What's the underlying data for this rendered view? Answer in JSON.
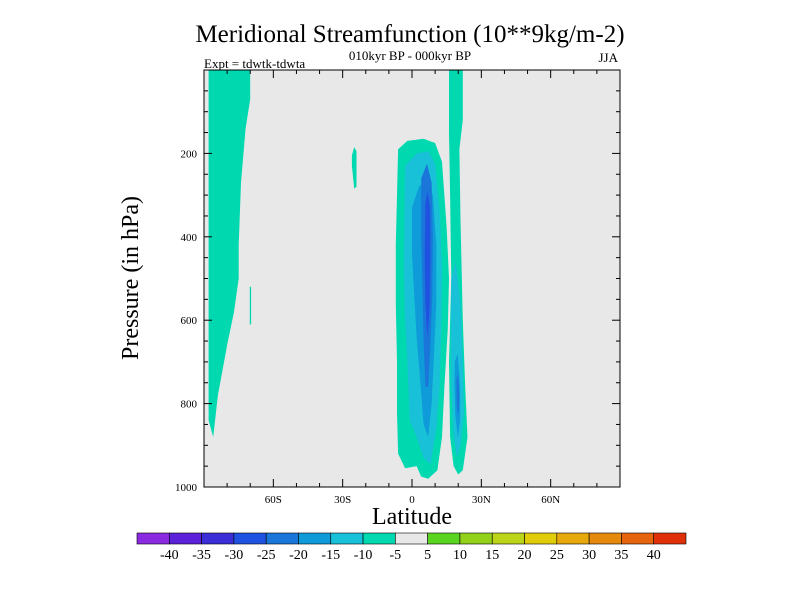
{
  "chart_data": {
    "type": "heatmap",
    "title": "Meridional Streamfunction (10**9kg/m-2)",
    "subtitle": "010kyr BP - 000kyr BP",
    "left_annotation": "Expt = tdwtk-tdwta",
    "right_annotation": "JJA",
    "xlabel": "Latitude",
    "ylabel": "Pressure (in hPa)",
    "xlim": [
      -90,
      90
    ],
    "ylim": [
      0,
      1000
    ],
    "y_inverted": true,
    "x_ticks": [
      {
        "value": -60,
        "label": "60S"
      },
      {
        "value": -30,
        "label": "30S"
      },
      {
        "value": 0,
        "label": "0"
      },
      {
        "value": 30,
        "label": "30N"
      },
      {
        "value": 60,
        "label": "60N"
      }
    ],
    "y_ticks": [
      {
        "value": 200,
        "label": "200"
      },
      {
        "value": 400,
        "label": "400"
      },
      {
        "value": 600,
        "label": "600"
      },
      {
        "value": 800,
        "label": "800"
      },
      {
        "value": 1000,
        "label": "1000"
      }
    ],
    "background_color": "#e8e8e8",
    "colorbar": {
      "labels": [
        "-40",
        "-35",
        "-30",
        "-25",
        "-20",
        "-15",
        "-10",
        "-5",
        "5",
        "10",
        "15",
        "20",
        "25",
        "30",
        "35",
        "40"
      ],
      "colors": [
        "#8a2be2",
        "#5b22d9",
        "#3b2ed6",
        "#1f52e0",
        "#1a76d9",
        "#0f9ad9",
        "#18c0d8",
        "#00d9b0",
        "#e8e8e8",
        "#5ad51f",
        "#92d01a",
        "#bcd41a",
        "#e0cc0a",
        "#e6a80d",
        "#e68a0d",
        "#e6640d",
        "#e0300a"
      ]
    },
    "contours": [
      {
        "name": "sh-polar-cell",
        "level": "-10 to -5",
        "color": "#00d9b0",
        "points": [
          [
            -88,
            0
          ],
          [
            -70,
            0
          ],
          [
            -70,
            70
          ],
          [
            -72,
            140
          ],
          [
            -74,
            270
          ],
          [
            -75,
            420
          ],
          [
            -75,
            500
          ],
          [
            -77,
            580
          ],
          [
            -80,
            660
          ],
          [
            -84,
            780
          ],
          [
            -86,
            880
          ],
          [
            -88,
            840
          ],
          [
            -88,
            0
          ]
        ]
      },
      {
        "name": "sh-thin-strip",
        "level": "-10 to -5",
        "color": "#00d9b0",
        "points": [
          [
            -70.2,
            520
          ],
          [
            -69.6,
            520
          ],
          [
            -69.6,
            610
          ],
          [
            -70.2,
            610
          ]
        ]
      },
      {
        "name": "sh-subtropical-blob",
        "level": "-10 to -5",
        "color": "#00d9b0",
        "points": [
          [
            -26,
            205
          ],
          [
            -25,
            185
          ],
          [
            -24,
            195
          ],
          [
            -24,
            280
          ],
          [
            -25,
            285
          ],
          [
            -26,
            230
          ]
        ]
      },
      {
        "name": "tropical-cell-outer",
        "level": "-10 to -5",
        "color": "#00d9b0",
        "points": [
          [
            -6,
            190
          ],
          [
            -2,
            170
          ],
          [
            5,
            165
          ],
          [
            10,
            175
          ],
          [
            13,
            220
          ],
          [
            15,
            380
          ],
          [
            16,
            500
          ],
          [
            15.5,
            620
          ],
          [
            14,
            760
          ],
          [
            13,
            880
          ],
          [
            11,
            960
          ],
          [
            7,
            980
          ],
          [
            4,
            975
          ],
          [
            2,
            950
          ],
          [
            -3,
            955
          ],
          [
            -6,
            920
          ],
          [
            -6.5,
            820
          ],
          [
            -6.5,
            700
          ],
          [
            -7,
            560
          ],
          [
            -7,
            420
          ],
          [
            -6.5,
            300
          ]
        ]
      },
      {
        "name": "tropical-cell-15",
        "level": "-15 to -10",
        "color": "#18c0d8",
        "points": [
          [
            -3,
            230
          ],
          [
            2,
            200
          ],
          [
            7,
            195
          ],
          [
            10,
            225
          ],
          [
            12,
            340
          ],
          [
            13,
            480
          ],
          [
            12.5,
            640
          ],
          [
            12,
            760
          ],
          [
            10.5,
            860
          ],
          [
            8,
            945
          ],
          [
            5,
            930
          ],
          [
            2,
            880
          ],
          [
            -1,
            840
          ],
          [
            -2,
            700
          ],
          [
            -3,
            600
          ],
          [
            -3.5,
            480
          ]
        ]
      },
      {
        "name": "tropical-cell-20",
        "level": "-20 to -15",
        "color": "#0f9ad9",
        "points": [
          [
            0,
            330
          ],
          [
            3,
            280
          ],
          [
            6,
            265
          ],
          [
            9,
            300
          ],
          [
            10.5,
            420
          ],
          [
            10.5,
            560
          ],
          [
            9.5,
            680
          ],
          [
            8.5,
            800
          ],
          [
            7,
            880
          ],
          [
            5,
            850
          ],
          [
            3.5,
            740
          ],
          [
            2,
            640
          ],
          [
            1,
            540
          ],
          [
            0,
            440
          ]
        ]
      },
      {
        "name": "tropical-cell-25",
        "level": "-25 to -20",
        "color": "#1a76d9",
        "points": [
          [
            4,
            260
          ],
          [
            6.5,
            225
          ],
          [
            8.5,
            270
          ],
          [
            9,
            400
          ],
          [
            8.8,
            540
          ],
          [
            8,
            650
          ],
          [
            7,
            760
          ],
          [
            5.8,
            760
          ],
          [
            5,
            650
          ],
          [
            4.5,
            520
          ],
          [
            4,
            400
          ]
        ]
      },
      {
        "name": "tropical-cell-30",
        "level": "-30 to -25",
        "color": "#1f52e0",
        "points": [
          [
            5.8,
            320
          ],
          [
            6.8,
            290
          ],
          [
            7.8,
            330
          ],
          [
            8,
            450
          ],
          [
            7.6,
            580
          ],
          [
            6.6,
            640
          ],
          [
            5.8,
            560
          ],
          [
            5.5,
            440
          ]
        ]
      },
      {
        "name": "nh-cell-outer",
        "level": "-10 to -5",
        "color": "#00d9b0",
        "points": [
          [
            16,
            0
          ],
          [
            22,
            0
          ],
          [
            22,
            120
          ],
          [
            20.5,
            190
          ],
          [
            21,
            360
          ],
          [
            22,
            600
          ],
          [
            23,
            760
          ],
          [
            24,
            880
          ],
          [
            22,
            960
          ],
          [
            20,
            970
          ],
          [
            18,
            950
          ],
          [
            16.5,
            880
          ],
          [
            16,
            700
          ],
          [
            17,
            500
          ],
          [
            16.5,
            300
          ],
          [
            16,
            150
          ]
        ]
      },
      {
        "name": "nh-cell-15",
        "level": "-15 to -10",
        "color": "#18c0d8",
        "points": [
          [
            17,
            500
          ],
          [
            19,
            460
          ],
          [
            21,
            560
          ],
          [
            22,
            700
          ],
          [
            22.5,
            820
          ],
          [
            21,
            900
          ],
          [
            19.5,
            930
          ],
          [
            18,
            880
          ],
          [
            17,
            760
          ],
          [
            16.8,
            620
          ]
        ]
      },
      {
        "name": "nh-cell-20",
        "level": "-20 to -15",
        "color": "#0f9ad9",
        "points": [
          [
            18.5,
            700
          ],
          [
            19.8,
            680
          ],
          [
            20.8,
            760
          ],
          [
            20.8,
            840
          ],
          [
            19.8,
            880
          ],
          [
            18.8,
            830
          ],
          [
            18.4,
            760
          ]
        ]
      },
      {
        "name": "nh-cell-25",
        "level": "-25 to -20",
        "color": "#1a76d9",
        "points": [
          [
            19.2,
            740
          ],
          [
            20,
            730
          ],
          [
            20.5,
            790
          ],
          [
            20,
            830
          ],
          [
            19.4,
            810
          ]
        ]
      }
    ]
  }
}
